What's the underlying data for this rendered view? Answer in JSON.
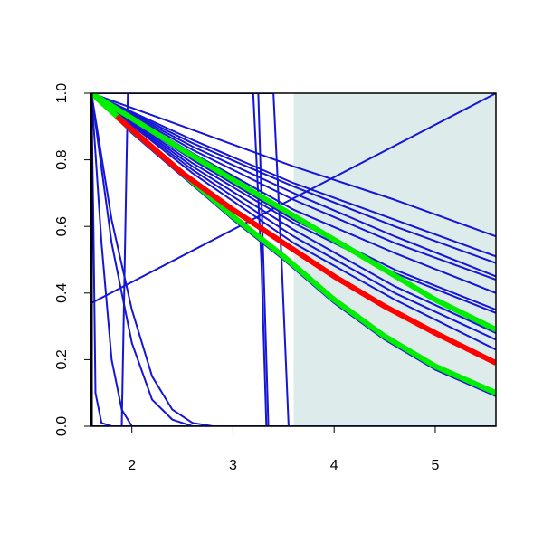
{
  "chart_data": {
    "type": "line",
    "xlim": [
      1.6,
      5.6
    ],
    "ylim": [
      0,
      1
    ],
    "xticks": [
      2,
      3,
      4,
      5
    ],
    "yticks": [
      {
        "value": 0,
        "label": "0.0"
      },
      0.2,
      0.4,
      0.6,
      0.8,
      {
        "value": 1,
        "label": "1.0"
      }
    ],
    "shaded_region": {
      "x": [
        3.6,
        5.6
      ],
      "color": "#deebeb"
    },
    "series": [
      {
        "color": "#1515d5",
        "line_width": 2,
        "x": [
          1.6,
          5.6
        ],
        "values": [
          0.37,
          1.0
        ]
      },
      {
        "color": "#1515d5",
        "line_width": 2,
        "x": [
          1.6,
          2.6,
          3.6,
          4.6,
          5.6
        ],
        "values": [
          1,
          0.89,
          0.78,
          0.68,
          0.57
        ]
      },
      {
        "color": "#1515d5",
        "line_width": 2,
        "x": [
          1.6,
          2.6,
          3.6,
          4.6,
          5.6
        ],
        "values": [
          1,
          0.86,
          0.73,
          0.62,
          0.51
        ]
      },
      {
        "color": "#1515d5",
        "line_width": 2,
        "x": [
          1.6,
          2.6,
          3.6,
          4.6,
          5.6
        ],
        "values": [
          1,
          0.85,
          0.72,
          0.6,
          0.49
        ]
      },
      {
        "color": "#1515d5",
        "line_width": 2,
        "x": [
          1.6,
          2.6,
          3.6,
          4.6,
          5.6
        ],
        "values": [
          1,
          0.84,
          0.7,
          0.57,
          0.45
        ]
      },
      {
        "color": "#1515d5",
        "line_width": 2,
        "x": [
          1.6,
          2.6,
          3.6,
          4.6,
          5.6
        ],
        "values": [
          1,
          0.83,
          0.68,
          0.55,
          0.44
        ]
      },
      {
        "color": "#1515d5",
        "line_width": 2,
        "x": [
          1.6,
          2.6,
          3.6,
          4.6,
          5.6
        ],
        "values": [
          1,
          0.82,
          0.65,
          0.52,
          0.4
        ]
      },
      {
        "color": "#1515d5",
        "line_width": 2,
        "x": [
          1.6,
          2.6,
          3.6,
          4.6,
          5.6
        ],
        "values": [
          1,
          0.8,
          0.62,
          0.47,
          0.35
        ]
      },
      {
        "color": "#1515d5",
        "line_width": 2,
        "x": [
          1.6,
          2.6,
          3.6,
          4.6,
          5.6
        ],
        "values": [
          1,
          0.79,
          0.61,
          0.46,
          0.34
        ]
      },
      {
        "color": "#1515d5",
        "line_width": 2,
        "x": [
          1.6,
          2.6,
          3.6,
          4.6,
          5.6
        ],
        "values": [
          1,
          0.78,
          0.59,
          0.42,
          0.28
        ]
      },
      {
        "color": "#1515d5",
        "line_width": 2,
        "x": [
          1.6,
          2.6,
          3.6,
          4.6,
          5.6
        ],
        "values": [
          1,
          0.77,
          0.57,
          0.4,
          0.26
        ]
      },
      {
        "color": "#1515d5",
        "line_width": 2,
        "x": [
          1.6,
          2.6,
          3.6,
          4.6,
          5.6
        ],
        "values": [
          1,
          0.76,
          0.55,
          0.38,
          0.23
        ]
      },
      {
        "color": "#1515d5",
        "line_width": 2,
        "x": [
          1.6,
          2.0,
          2.5,
          3.0,
          3.5,
          4.0,
          4.5,
          5.0,
          5.6
        ],
        "values": [
          1,
          0.88,
          0.75,
          0.62,
          0.5,
          0.37,
          0.26,
          0.17,
          0.09
        ]
      },
      {
        "color": "#1515d5",
        "line_width": 2,
        "x": [
          1.6,
          1.62,
          1.64,
          1.7,
          1.8,
          5.6
        ],
        "values": [
          1,
          0.6,
          0.1,
          0.01,
          0,
          0
        ]
      },
      {
        "color": "#1515d5",
        "line_width": 2,
        "x": [
          1.6,
          1.7,
          1.8,
          1.9,
          2.0,
          5.6
        ],
        "values": [
          1,
          0.55,
          0.2,
          0.05,
          0,
          0
        ]
      },
      {
        "color": "#1515d5",
        "line_width": 2,
        "x": [
          1.6,
          1.8,
          2.0,
          2.2,
          2.4,
          2.6,
          5.6
        ],
        "values": [
          1,
          0.55,
          0.25,
          0.08,
          0.02,
          0,
          0
        ]
      },
      {
        "color": "#1515d5",
        "line_width": 2,
        "x": [
          1.6,
          1.8,
          2.0,
          2.2,
          2.4,
          2.6,
          2.8,
          5.6
        ],
        "values": [
          1,
          0.62,
          0.35,
          0.15,
          0.05,
          0.01,
          0,
          0
        ]
      },
      {
        "color": "#1515d5",
        "line_width": 2,
        "x": [
          1.6,
          1.9,
          1.93,
          1.96,
          3.2,
          3.28,
          3.33,
          5.6
        ],
        "values": [
          0,
          0,
          0.5,
          1,
          1,
          0.5,
          0,
          0
        ]
      },
      {
        "color": "#1515d5",
        "line_width": 2,
        "x": [
          1.6,
          3.25,
          3.3,
          3.35,
          5.6
        ],
        "values": [
          1,
          1,
          0.5,
          0,
          0
        ]
      },
      {
        "color": "#1515d5",
        "line_width": 2,
        "x": [
          1.6,
          3.4,
          3.48,
          3.55,
          5.6
        ],
        "values": [
          1,
          1,
          0.5,
          0,
          0
        ]
      },
      {
        "color": "#00ee00",
        "line_width": 6,
        "x": [
          1.6,
          2.5,
          3.0,
          3.5,
          4.0,
          4.5,
          5.0,
          5.6
        ],
        "values": [
          1,
          0.83,
          0.74,
          0.65,
          0.56,
          0.47,
          0.38,
          0.29
        ]
      },
      {
        "color": "#00ee00",
        "line_width": 6,
        "x": [
          1.6,
          2.0,
          2.5,
          3.0,
          3.5,
          4.0,
          4.5,
          5.0,
          5.6
        ],
        "values": [
          1,
          0.89,
          0.76,
          0.63,
          0.51,
          0.38,
          0.27,
          0.18,
          0.1
        ]
      },
      {
        "color": "#ff0000",
        "line_width": 6,
        "x": [
          1.85,
          2.5,
          3.0,
          3.5,
          4.0,
          4.5,
          5.0,
          5.6
        ],
        "values": [
          0.93,
          0.76,
          0.65,
          0.55,
          0.45,
          0.36,
          0.28,
          0.19
        ]
      }
    ]
  }
}
